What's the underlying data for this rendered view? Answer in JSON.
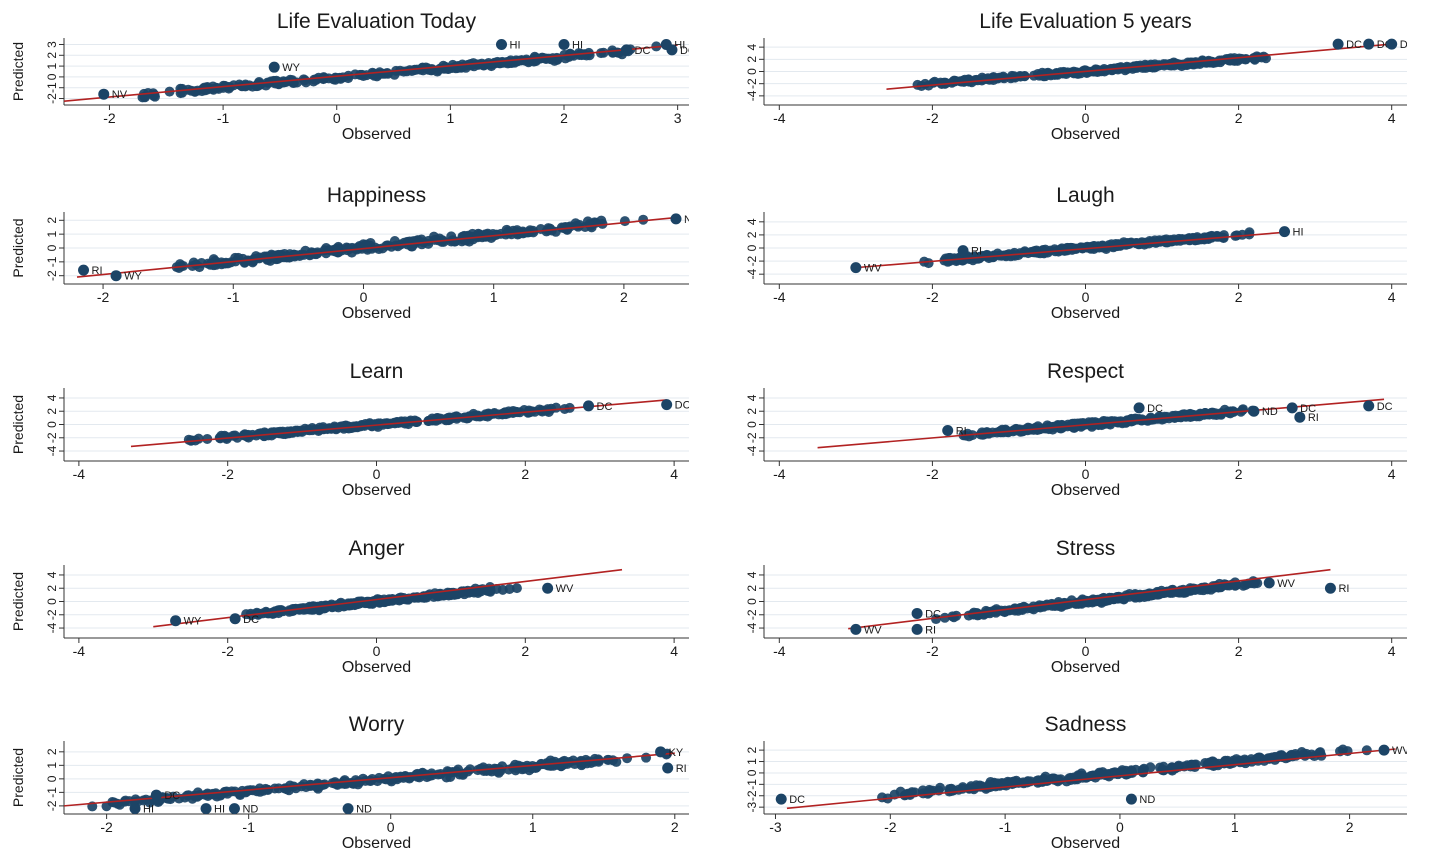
{
  "chart_data": [
    {
      "type": "scatter",
      "title": "Life Evaluation Today",
      "xlabel": "Observed",
      "ylabel": "Predicted",
      "xlim": [
        -2.4,
        3.1
      ],
      "ylim": [
        -2.6,
        3.6
      ],
      "xticks": [
        "-2",
        "-1",
        "0",
        "1",
        "2",
        "3"
      ],
      "yticks": [
        "-2",
        "-1",
        "0",
        "1",
        "2",
        "3"
      ],
      "fit_line": [
        [
          -2.4,
          -2.25
        ],
        [
          3.0,
          2.95
        ]
      ],
      "cloud": {
        "x_range": [
          -2.1,
          3.0
        ],
        "slope": 0.95,
        "intercept": -0.05,
        "spread": 0.5
      },
      "labeled_points": [
        {
          "label": "NV",
          "x": -2.05,
          "y": -1.6
        },
        {
          "label": "WY",
          "x": -0.55,
          "y": 0.9
        },
        {
          "label": "HI",
          "x": 1.45,
          "y": 3.0
        },
        {
          "label": "HI",
          "x": 2.0,
          "y": 3.0
        },
        {
          "label": "DC",
          "x": 2.55,
          "y": 2.5
        },
        {
          "label": "HI",
          "x": 2.9,
          "y": 3.0
        },
        {
          "label": "DC",
          "x": 2.95,
          "y": 2.5
        }
      ],
      "grid": true
    },
    {
      "type": "scatter",
      "title": "Life Evaluation 5 years",
      "xlabel": "Observed",
      "ylabel": "Predicted",
      "xlim": [
        -4.2,
        4.2
      ],
      "ylim": [
        -5.5,
        5.5
      ],
      "xticks": [
        "-4",
        "-2",
        "0",
        "2",
        "4"
      ],
      "yticks": [
        "-4",
        "-2",
        "0",
        "2",
        "4"
      ],
      "fit_line": [
        [
          -2.6,
          -2.9
        ],
        [
          4.0,
          4.5
        ]
      ],
      "cloud": {
        "x_range": [
          -2.4,
          2.6
        ],
        "slope": 1.0,
        "intercept": 0.0,
        "spread": 0.7
      },
      "labeled_points": [
        {
          "label": "DC",
          "x": 3.3,
          "y": 4.5
        },
        {
          "label": "DC",
          "x": 3.7,
          "y": 4.5
        },
        {
          "label": "DC",
          "x": 4.0,
          "y": 4.5
        }
      ],
      "grid": true
    },
    {
      "type": "scatter",
      "title": "Happiness",
      "xlabel": "Observed",
      "ylabel": "Predicted",
      "xlim": [
        -2.3,
        2.5
      ],
      "ylim": [
        -2.6,
        2.6
      ],
      "xticks": [
        "-2",
        "-1",
        "0",
        "1",
        "2"
      ],
      "yticks": [
        "-2",
        "-1",
        "0",
        "1",
        "2"
      ],
      "fit_line": [
        [
          -2.2,
          -2.1
        ],
        [
          2.4,
          2.2
        ]
      ],
      "cloud": {
        "x_range": [
          -1.7,
          2.2
        ],
        "slope": 0.95,
        "intercept": 0.0,
        "spread": 0.55
      },
      "labeled_points": [
        {
          "label": "RI",
          "x": -2.15,
          "y": -1.6
        },
        {
          "label": "WY",
          "x": -1.9,
          "y": -2.0
        },
        {
          "label": "ND",
          "x": 2.4,
          "y": 2.1
        }
      ],
      "grid": true
    },
    {
      "type": "scatter",
      "title": "Laugh",
      "xlabel": "Observed",
      "ylabel": "Predicted",
      "xlim": [
        -4.2,
        4.2
      ],
      "ylim": [
        -5.5,
        5.5
      ],
      "xticks": [
        "-4",
        "-2",
        "0",
        "2",
        "4"
      ],
      "yticks": [
        "-4",
        "-2",
        "0",
        "2",
        "4"
      ],
      "fit_line": [
        [
          -3.0,
          -3.0
        ],
        [
          2.6,
          2.4
        ]
      ],
      "cloud": {
        "x_range": [
          -2.2,
          2.3
        ],
        "slope": 1.0,
        "intercept": 0.0,
        "spread": 0.7
      },
      "labeled_points": [
        {
          "label": "WV",
          "x": -3.0,
          "y": -3.0
        },
        {
          "label": "RI",
          "x": -1.6,
          "y": -0.4
        },
        {
          "label": "HI",
          "x": 2.6,
          "y": 2.5
        }
      ],
      "grid": true
    },
    {
      "type": "scatter",
      "title": "Learn",
      "xlabel": "Observed",
      "ylabel": "Predicted",
      "xlim": [
        -4.2,
        4.2
      ],
      "ylim": [
        -5.5,
        5.5
      ],
      "xticks": [
        "-4",
        "-2",
        "0",
        "2",
        "4"
      ],
      "yticks": [
        "-4",
        "-2",
        "0",
        "2",
        "4"
      ],
      "fit_line": [
        [
          -3.3,
          -3.3
        ],
        [
          3.9,
          3.7
        ]
      ],
      "cloud": {
        "x_range": [
          -2.7,
          2.8
        ],
        "slope": 0.95,
        "intercept": 0.0,
        "spread": 0.65
      },
      "labeled_points": [
        {
          "label": "DC",
          "x": 2.85,
          "y": 2.8
        },
        {
          "label": "DC",
          "x": 3.9,
          "y": 3.0
        }
      ],
      "grid": true
    },
    {
      "type": "scatter",
      "title": "Respect",
      "xlabel": "Observed",
      "ylabel": "Predicted",
      "xlim": [
        -4.2,
        4.2
      ],
      "ylim": [
        -5.5,
        5.5
      ],
      "xticks": [
        "-4",
        "-2",
        "0",
        "2",
        "4"
      ],
      "yticks": [
        "-4",
        "-2",
        "0",
        "2",
        "4"
      ],
      "fit_line": [
        [
          -3.5,
          -3.5
        ],
        [
          3.9,
          3.8
        ]
      ],
      "cloud": {
        "x_range": [
          -1.7,
          2.3
        ],
        "slope": 1.0,
        "intercept": 0.0,
        "spread": 0.7
      },
      "labeled_points": [
        {
          "label": "RI",
          "x": -1.8,
          "y": -0.9
        },
        {
          "label": "DC",
          "x": 0.7,
          "y": 2.5
        },
        {
          "label": "ND",
          "x": 2.2,
          "y": 2.0
        },
        {
          "label": "DC",
          "x": 2.7,
          "y": 2.5
        },
        {
          "label": "RI",
          "x": 2.8,
          "y": 1.1
        },
        {
          "label": "DC",
          "x": 3.7,
          "y": 2.8
        }
      ],
      "grid": true
    },
    {
      "type": "scatter",
      "title": "Anger",
      "xlabel": "Observed",
      "ylabel": "Predicted",
      "xlim": [
        -4.2,
        4.2
      ],
      "ylim": [
        -5.5,
        5.5
      ],
      "xticks": [
        "-4",
        "-2",
        "0",
        "2",
        "4"
      ],
      "yticks": [
        "-4",
        "-2",
        "0",
        "2",
        "4"
      ],
      "fit_line": [
        [
          -3.0,
          -3.8
        ],
        [
          3.3,
          4.8
        ]
      ],
      "cloud": {
        "x_range": [
          -1.9,
          1.9
        ],
        "slope": 1.15,
        "intercept": 0.0,
        "spread": 0.7
      },
      "labeled_points": [
        {
          "label": "WY",
          "x": -2.7,
          "y": -2.9
        },
        {
          "label": "DC",
          "x": -1.9,
          "y": -2.6
        },
        {
          "label": "WV",
          "x": 2.3,
          "y": 2.0
        }
      ],
      "grid": true
    },
    {
      "type": "scatter",
      "title": "Stress",
      "xlabel": "Observed",
      "ylabel": "Predicted",
      "xlim": [
        -4.2,
        4.2
      ],
      "ylim": [
        -5.5,
        5.5
      ],
      "xticks": [
        "-4",
        "-2",
        "0",
        "2",
        "4"
      ],
      "yticks": [
        "-4",
        "-2",
        "0",
        "2",
        "4"
      ],
      "fit_line": [
        [
          -3.1,
          -4.1
        ],
        [
          3.2,
          4.8
        ]
      ],
      "cloud": {
        "x_range": [
          -2.0,
          2.4
        ],
        "slope": 1.3,
        "intercept": 0.0,
        "spread": 0.8
      },
      "labeled_points": [
        {
          "label": "WV",
          "x": -3.0,
          "y": -4.2
        },
        {
          "label": "RI",
          "x": -2.2,
          "y": -4.2
        },
        {
          "label": "DC",
          "x": -2.2,
          "y": -1.8
        },
        {
          "label": "WV",
          "x": 2.4,
          "y": 2.8
        },
        {
          "label": "RI",
          "x": 3.2,
          "y": 2.0
        }
      ],
      "grid": true
    },
    {
      "type": "scatter",
      "title": "Worry",
      "xlabel": "Observed",
      "ylabel": "Predicted",
      "xlim": [
        -2.3,
        2.1
      ],
      "ylim": [
        -2.6,
        2.8
      ],
      "xticks": [
        "-2",
        "-1",
        "0",
        "1",
        "2"
      ],
      "yticks": [
        "-2",
        "-1",
        "0",
        "1",
        "2"
      ],
      "fit_line": [
        [
          -2.3,
          -2.0
        ],
        [
          2.0,
          1.9
        ]
      ],
      "cloud": {
        "x_range": [
          -2.2,
          2.0
        ],
        "slope": 0.92,
        "intercept": 0.0,
        "spread": 0.5
      },
      "labeled_points": [
        {
          "label": "DC",
          "x": -1.65,
          "y": -1.2
        },
        {
          "label": "HI",
          "x": -1.8,
          "y": -2.2
        },
        {
          "label": "HI",
          "x": -1.3,
          "y": -2.2
        },
        {
          "label": "ND",
          "x": -1.1,
          "y": -2.2
        },
        {
          "label": "ND",
          "x": -0.3,
          "y": -2.2
        },
        {
          "label": "KY",
          "x": 1.9,
          "y": 2.0
        },
        {
          "label": "RI",
          "x": 1.95,
          "y": 0.8
        }
      ],
      "grid": true
    },
    {
      "type": "scatter",
      "title": "Sadness",
      "xlabel": "Observed",
      "ylabel": "Predicted",
      "xlim": [
        -3.1,
        2.5
      ],
      "ylim": [
        -3.6,
        2.8
      ],
      "xticks": [
        "-3",
        "-2",
        "-1",
        "0",
        "1",
        "2"
      ],
      "yticks": [
        "-3",
        "-2",
        "-1",
        "0",
        "1",
        "2"
      ],
      "fit_line": [
        [
          -2.9,
          -3.1
        ],
        [
          2.4,
          2.1
        ]
      ],
      "cloud": {
        "x_range": [
          -2.3,
          2.3
        ],
        "slope": 0.98,
        "intercept": 0.0,
        "spread": 0.55
      },
      "labeled_points": [
        {
          "label": "DC",
          "x": -2.95,
          "y": -2.3
        },
        {
          "label": "ND",
          "x": 0.1,
          "y": -2.3
        },
        {
          "label": "WV",
          "x": 2.3,
          "y": 2.0
        }
      ],
      "grid": true
    }
  ],
  "colors": {
    "markers": "#1c4466",
    "fit_line": "#b22222",
    "grid": "#e3e9ef",
    "axis": "#333333",
    "text": "#1a1a1a"
  }
}
